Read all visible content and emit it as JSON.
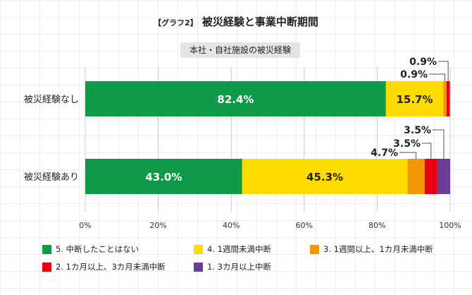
{
  "chart_data": {
    "type": "bar",
    "orientation": "horizontal-stacked-100",
    "title_tag": "【グラフ2】",
    "title": "被災経験と事業中断期間",
    "subtitle": "本社・自社施設の被災経験",
    "categories": [
      "被災経験なし",
      "被災経験あり"
    ],
    "series": [
      {
        "name": "5. 中断したことはない",
        "color": "#0e9a48",
        "values": [
          82.4,
          43.0
        ]
      },
      {
        "name": "4. 1週間未満中断",
        "color": "#ffdc00",
        "values": [
          15.7,
          45.3
        ]
      },
      {
        "name": "3. 1週間以上、1カ月未満中断",
        "color": "#f39800",
        "values": [
          0.9,
          4.7
        ]
      },
      {
        "name": "2. 1カ月以上、3カ月未満中断",
        "color": "#e60012",
        "values": [
          0.9,
          3.5
        ]
      },
      {
        "name": "1. 3カ月以上中断",
        "color": "#6a3f98",
        "values": [
          0,
          3.5
        ]
      }
    ],
    "labels": [
      [
        "82.4%",
        "15.7%",
        "0.9%",
        "0.9%",
        null
      ],
      [
        "43.0%",
        "45.3%",
        "4.7%",
        "3.5%",
        "3.5%"
      ]
    ],
    "xticks": [
      "0%",
      "20%",
      "40%",
      "60%",
      "80%",
      "100%"
    ],
    "xlim": [
      0,
      100
    ],
    "legend": "bottom"
  }
}
